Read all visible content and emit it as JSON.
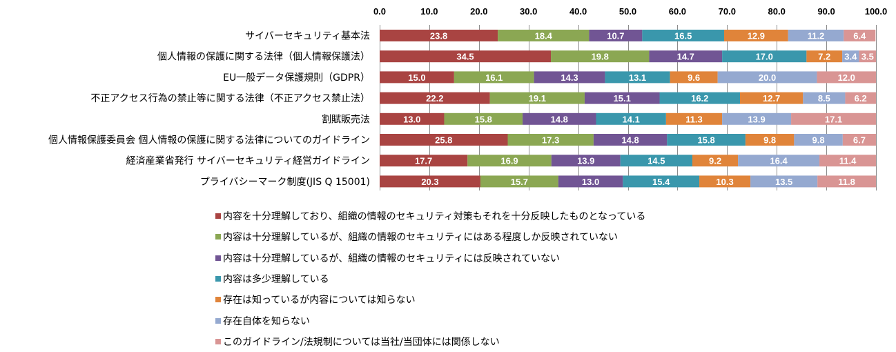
{
  "chart_data": {
    "type": "bar",
    "orientation": "horizontal",
    "stacked": true,
    "title": "",
    "xlabel": "",
    "ylabel": "",
    "xlim": [
      0,
      100
    ],
    "x_ticks": [
      "0.0",
      "10.0",
      "20.0",
      "30.0",
      "40.0",
      "50.0",
      "60.0",
      "70.0",
      "80.0",
      "90.0",
      "100.0"
    ],
    "x_axis_position": "top",
    "grid": "vertical",
    "legend_position": "bottom",
    "categories": [
      "サイバーセキュリティ基本法",
      "個人情報の保護に関する法律（個人情報保護法）",
      "EU一般データ保護規則（GDPR）",
      "不正アクセス行為の禁止等に関する法律（不正アクセス禁止法）",
      "割賦販売法",
      "個人情報保護委員会 個人情報の保護に関する法律についてのガイドライン",
      "経済産業省発行 サイバーセキュリティ経営ガイドライン",
      "プライバシーマーク制度(JIS Q 15001)"
    ],
    "series": [
      {
        "name": "内容を十分理解しており、組織の情報のセキュリティ対策もそれを十分反映したものとなっている",
        "color": "#A94442",
        "values": [
          23.8,
          34.5,
          15.0,
          22.2,
          13.0,
          25.8,
          17.7,
          20.3
        ]
      },
      {
        "name": "内容は十分理解しているが、組織の情報のセキュリティにはある程度しか反映されていない",
        "color": "#8BA753",
        "values": [
          18.4,
          19.8,
          16.1,
          19.1,
          15.8,
          17.3,
          16.9,
          15.7
        ]
      },
      {
        "name": "内容は十分理解しているが、組織の情報のセキュリティには反映されていない",
        "color": "#715594",
        "values": [
          10.7,
          14.7,
          14.3,
          15.1,
          14.8,
          14.8,
          13.9,
          13.0
        ]
      },
      {
        "name": "内容は多少理解している",
        "color": "#3A97AC",
        "values": [
          16.5,
          17.0,
          13.1,
          16.2,
          14.1,
          15.8,
          14.5,
          15.4
        ]
      },
      {
        "name": "存在は知っているが内容については知らない",
        "color": "#E0843A",
        "values": [
          12.9,
          7.2,
          9.6,
          12.7,
          11.3,
          9.8,
          9.2,
          10.3
        ]
      },
      {
        "name": "存在自体を知らない",
        "color": "#95A9D0",
        "values": [
          11.2,
          3.4,
          20.0,
          8.5,
          13.9,
          9.8,
          16.4,
          13.5
        ]
      },
      {
        "name": "このガイドライン/法規制については当社/当団体には関係しない",
        "color": "#D99594",
        "values": [
          6.4,
          3.5,
          12.0,
          6.2,
          17.1,
          6.7,
          11.4,
          11.8
        ]
      }
    ]
  }
}
